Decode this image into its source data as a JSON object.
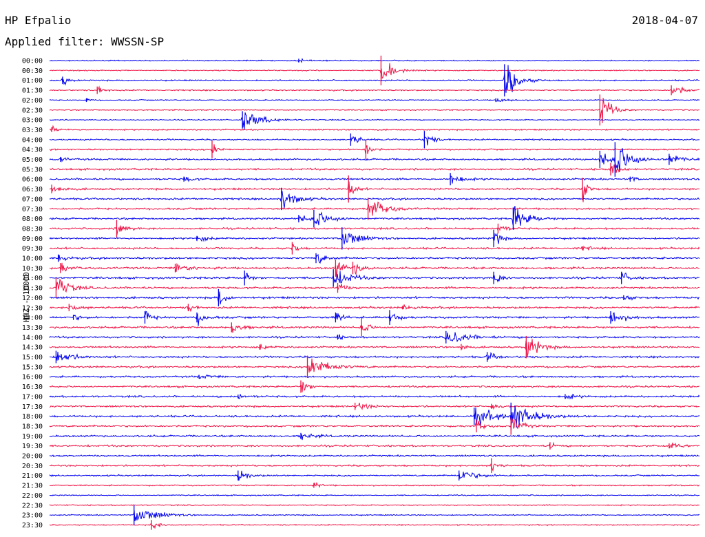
{
  "header": {
    "station": "HP Efpalio",
    "date": "2018-04-07",
    "filter": "Applied filter: WWSSN-SP"
  },
  "colors": {
    "even_trace": "#0000ee",
    "odd_trace": "#ee1144"
  },
  "chart_data": {
    "type": "line",
    "title": "HP Efpalio",
    "ylabel": "HHZ - 10000",
    "grid": false,
    "time_labels": [
      "00:00",
      "00:30",
      "01:00",
      "01:30",
      "02:00",
      "02:30",
      "03:00",
      "03:30",
      "04:00",
      "04:30",
      "05:00",
      "05:30",
      "06:00",
      "06:30",
      "07:00",
      "07:30",
      "08:00",
      "08:30",
      "09:00",
      "09:30",
      "10:00",
      "10:30",
      "11:00",
      "11:30",
      "12:00",
      "12:30",
      "13:00",
      "13:30",
      "14:00",
      "14:30",
      "15:00",
      "15:30",
      "16:00",
      "16:30",
      "17:00",
      "17:30",
      "18:00",
      "18:30",
      "19:00",
      "19:30",
      "20:00",
      "20:30",
      "21:00",
      "21:30",
      "22:00",
      "22:30",
      "23:00",
      "23:30"
    ],
    "trace_minutes": 30,
    "noise_level": [
      0.6,
      0.6,
      0.7,
      0.7,
      0.6,
      0.6,
      0.6,
      0.7,
      0.8,
      0.8,
      1.0,
      1.0,
      1.0,
      1.0,
      1.0,
      1.0,
      1.0,
      1.0,
      1.0,
      1.0,
      1.1,
      1.1,
      1.1,
      1.1,
      1.1,
      1.1,
      1.1,
      1.1,
      1.0,
      1.0,
      1.0,
      1.0,
      1.0,
      1.0,
      1.0,
      1.0,
      1.0,
      1.0,
      1.0,
      1.0,
      0.9,
      0.9,
      0.8,
      0.7,
      0.6,
      0.6,
      0.6,
      0.6
    ],
    "events": [
      {
        "trace": 0,
        "minute": 11.5,
        "amplitude": 3,
        "duration": 0.4
      },
      {
        "trace": 1,
        "minute": 15.3,
        "amplitude": 24,
        "duration": 0.8
      },
      {
        "trace": 2,
        "minute": 0.6,
        "amplitude": 6,
        "duration": 0.5
      },
      {
        "trace": 2,
        "minute": 21.0,
        "amplitude": 26,
        "duration": 1.0
      },
      {
        "trace": 3,
        "minute": 2.2,
        "amplitude": 6,
        "duration": 0.5
      },
      {
        "trace": 3,
        "minute": 28.7,
        "amplitude": 8,
        "duration": 1.0
      },
      {
        "trace": 4,
        "minute": 1.7,
        "amplitude": 3,
        "duration": 0.3
      },
      {
        "trace": 4,
        "minute": 20.6,
        "amplitude": 3,
        "duration": 1.0
      },
      {
        "trace": 5,
        "minute": 25.4,
        "amplitude": 25,
        "duration": 0.8
      },
      {
        "trace": 6,
        "minute": 8.9,
        "amplitude": 14,
        "duration": 1.5
      },
      {
        "trace": 7,
        "minute": 0.1,
        "amplitude": 4,
        "duration": 0.6
      },
      {
        "trace": 8,
        "minute": 13.9,
        "amplitude": 10,
        "duration": 0.6
      },
      {
        "trace": 8,
        "minute": 17.3,
        "amplitude": 14,
        "duration": 0.6
      },
      {
        "trace": 9,
        "minute": 7.5,
        "amplitude": 14,
        "duration": 0.4
      },
      {
        "trace": 9,
        "minute": 14.6,
        "amplitude": 16,
        "duration": 0.4
      },
      {
        "trace": 10,
        "minute": 0.5,
        "amplitude": 4,
        "duration": 0.5
      },
      {
        "trace": 10,
        "minute": 25.4,
        "amplitude": 14,
        "duration": 0.7
      },
      {
        "trace": 10,
        "minute": 26.1,
        "amplitude": 28,
        "duration": 1.2
      },
      {
        "trace": 10,
        "minute": 28.6,
        "amplitude": 9,
        "duration": 0.8
      },
      {
        "trace": 11,
        "minute": 25.9,
        "amplitude": 10,
        "duration": 0.6
      },
      {
        "trace": 12,
        "minute": 6.2,
        "amplitude": 4,
        "duration": 0.6
      },
      {
        "trace": 12,
        "minute": 18.5,
        "amplitude": 10,
        "duration": 0.8
      },
      {
        "trace": 12,
        "minute": 26.8,
        "amplitude": 4,
        "duration": 0.5
      },
      {
        "trace": 13,
        "minute": 0.1,
        "amplitude": 7,
        "duration": 0.8
      },
      {
        "trace": 13,
        "minute": 13.8,
        "amplitude": 22,
        "duration": 0.4
      },
      {
        "trace": 13,
        "minute": 24.6,
        "amplitude": 18,
        "duration": 0.4
      },
      {
        "trace": 14,
        "minute": 10.7,
        "amplitude": 18,
        "duration": 1.0
      },
      {
        "trace": 15,
        "minute": 14.7,
        "amplitude": 18,
        "duration": 1.2
      },
      {
        "trace": 16,
        "minute": 11.5,
        "amplitude": 6,
        "duration": 0.8
      },
      {
        "trace": 16,
        "minute": 12.2,
        "amplitude": 14,
        "duration": 1.2
      },
      {
        "trace": 16,
        "minute": 21.4,
        "amplitude": 18,
        "duration": 1.2
      },
      {
        "trace": 17,
        "minute": 3.1,
        "amplitude": 14,
        "duration": 0.6
      },
      {
        "trace": 17,
        "minute": 20.7,
        "amplitude": 8,
        "duration": 0.6
      },
      {
        "trace": 18,
        "minute": 6.8,
        "amplitude": 4,
        "duration": 0.9
      },
      {
        "trace": 18,
        "minute": 13.5,
        "amplitude": 18,
        "duration": 1.2
      },
      {
        "trace": 18,
        "minute": 20.5,
        "amplitude": 14,
        "duration": 0.5
      },
      {
        "trace": 19,
        "minute": 11.2,
        "amplitude": 10,
        "duration": 0.4
      },
      {
        "trace": 19,
        "minute": 24.6,
        "amplitude": 3,
        "duration": 0.7
      },
      {
        "trace": 20,
        "minute": 0.4,
        "amplitude": 6,
        "duration": 0.6
      },
      {
        "trace": 20,
        "minute": 12.3,
        "amplitude": 8,
        "duration": 0.8
      },
      {
        "trace": 21,
        "minute": 0.5,
        "amplitude": 8,
        "duration": 0.6
      },
      {
        "trace": 21,
        "minute": 5.8,
        "amplitude": 7,
        "duration": 1.0
      },
      {
        "trace": 21,
        "minute": 13.2,
        "amplitude": 14,
        "duration": 0.6
      },
      {
        "trace": 21,
        "minute": 14.0,
        "amplitude": 10,
        "duration": 0.6
      },
      {
        "trace": 22,
        "minute": 9.0,
        "amplitude": 12,
        "duration": 0.4
      },
      {
        "trace": 22,
        "minute": 13.1,
        "amplitude": 14,
        "duration": 1.2
      },
      {
        "trace": 22,
        "minute": 20.5,
        "amplitude": 10,
        "duration": 0.5
      },
      {
        "trace": 22,
        "minute": 26.4,
        "amplitude": 10,
        "duration": 0.5
      },
      {
        "trace": 23,
        "minute": 0.3,
        "amplitude": 16,
        "duration": 1.0
      },
      {
        "trace": 23,
        "minute": 13.3,
        "amplitude": 8,
        "duration": 0.6
      },
      {
        "trace": 24,
        "minute": 7.8,
        "amplitude": 14,
        "duration": 0.5
      },
      {
        "trace": 24,
        "minute": 26.5,
        "amplitude": 4,
        "duration": 0.6
      },
      {
        "trace": 25,
        "minute": 0.9,
        "amplitude": 6,
        "duration": 0.7
      },
      {
        "trace": 25,
        "minute": 6.4,
        "amplitude": 6,
        "duration": 0.5
      },
      {
        "trace": 25,
        "minute": 16.3,
        "amplitude": 3,
        "duration": 1.0
      },
      {
        "trace": 26,
        "minute": 1.1,
        "amplitude": 4,
        "duration": 0.6
      },
      {
        "trace": 26,
        "minute": 4.4,
        "amplitude": 10,
        "duration": 0.5
      },
      {
        "trace": 26,
        "minute": 6.8,
        "amplitude": 8,
        "duration": 0.7
      },
      {
        "trace": 26,
        "minute": 13.2,
        "amplitude": 8,
        "duration": 0.5
      },
      {
        "trace": 26,
        "minute": 15.7,
        "amplitude": 12,
        "duration": 0.5
      },
      {
        "trace": 26,
        "minute": 25.9,
        "amplitude": 10,
        "duration": 1.0
      },
      {
        "trace": 27,
        "minute": 8.4,
        "amplitude": 8,
        "duration": 0.8
      },
      {
        "trace": 27,
        "minute": 14.4,
        "amplitude": 14,
        "duration": 0.5
      },
      {
        "trace": 28,
        "minute": 13.3,
        "amplitude": 4,
        "duration": 0.4
      },
      {
        "trace": 28,
        "minute": 18.3,
        "amplitude": 10,
        "duration": 1.6
      },
      {
        "trace": 29,
        "minute": 9.7,
        "amplitude": 4,
        "duration": 0.6
      },
      {
        "trace": 29,
        "minute": 19.0,
        "amplitude": 5,
        "duration": 0.5
      },
      {
        "trace": 29,
        "minute": 22.0,
        "amplitude": 18,
        "duration": 1.0
      },
      {
        "trace": 30,
        "minute": 0.3,
        "amplitude": 10,
        "duration": 1.2
      },
      {
        "trace": 30,
        "minute": 20.2,
        "amplitude": 8,
        "duration": 0.6
      },
      {
        "trace": 31,
        "minute": 11.9,
        "amplitude": 18,
        "duration": 1.5
      },
      {
        "trace": 32,
        "minute": 6.9,
        "amplitude": 3,
        "duration": 1.0
      },
      {
        "trace": 33,
        "minute": 11.6,
        "amplitude": 10,
        "duration": 0.6
      },
      {
        "trace": 34,
        "minute": 8.7,
        "amplitude": 3,
        "duration": 0.8
      },
      {
        "trace": 34,
        "minute": 23.8,
        "amplitude": 4,
        "duration": 0.8
      },
      {
        "trace": 35,
        "minute": 14.1,
        "amplitude": 6,
        "duration": 1.0
      },
      {
        "trace": 35,
        "minute": 20.4,
        "amplitude": 4,
        "duration": 0.7
      },
      {
        "trace": 36,
        "minute": 19.6,
        "amplitude": 14,
        "duration": 1.4
      },
      {
        "trace": 36,
        "minute": 21.3,
        "amplitude": 22,
        "duration": 1.6
      },
      {
        "trace": 37,
        "minute": 19.7,
        "amplitude": 10,
        "duration": 0.5
      },
      {
        "trace": 37,
        "minute": 21.3,
        "amplitude": 14,
        "duration": 0.8
      },
      {
        "trace": 38,
        "minute": 11.6,
        "amplitude": 5,
        "duration": 1.0
      },
      {
        "trace": 39,
        "minute": 23.1,
        "amplitude": 6,
        "duration": 0.4
      },
      {
        "trace": 39,
        "minute": 28.6,
        "amplitude": 4,
        "duration": 1.0
      },
      {
        "trace": 41,
        "minute": 20.4,
        "amplitude": 12,
        "duration": 0.4
      },
      {
        "trace": 42,
        "minute": 8.7,
        "amplitude": 8,
        "duration": 0.8
      },
      {
        "trace": 42,
        "minute": 18.9,
        "amplitude": 8,
        "duration": 1.4
      },
      {
        "trace": 43,
        "minute": 12.2,
        "amplitude": 4,
        "duration": 0.6
      },
      {
        "trace": 46,
        "minute": 3.9,
        "amplitude": 16,
        "duration": 1.6
      },
      {
        "trace": 47,
        "minute": 4.7,
        "amplitude": 8,
        "duration": 0.6
      }
    ]
  }
}
